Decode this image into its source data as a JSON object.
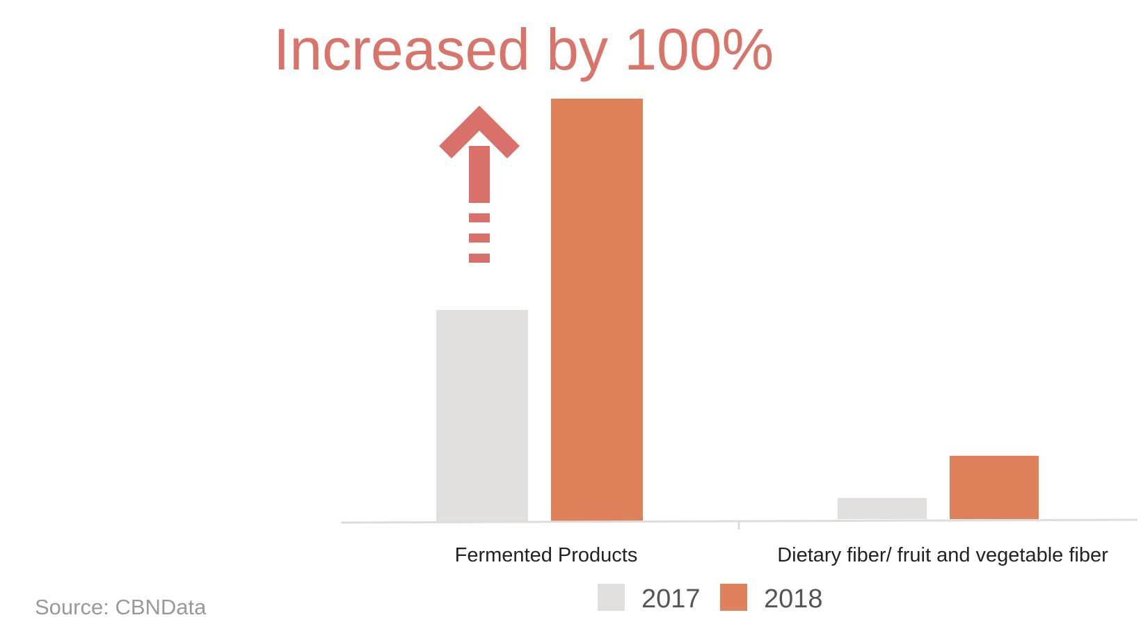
{
  "headline": "Increased by 100%",
  "source": "Source: CBNData",
  "colors": {
    "series_2017": "#e2e0de",
    "series_2018": "#df825c",
    "headline": "#d9746a",
    "arrow": "#d9706a",
    "axis": "#dddddd"
  },
  "icons": {
    "annotation": "up-arrow-icon"
  },
  "chart_data": {
    "type": "bar",
    "title": "",
    "xlabel": "",
    "ylabel": "",
    "categories": [
      "Fermented Products",
      "Dietary fiber/ fruit and vegetable fiber"
    ],
    "series": [
      {
        "name": "2017",
        "values": [
          50,
          5
        ]
      },
      {
        "name": "2018",
        "values": [
          100,
          15
        ]
      }
    ],
    "ylim": [
      0,
      100
    ],
    "grid": false,
    "legend_position": "bottom",
    "annotation": "Increased by 100%"
  }
}
